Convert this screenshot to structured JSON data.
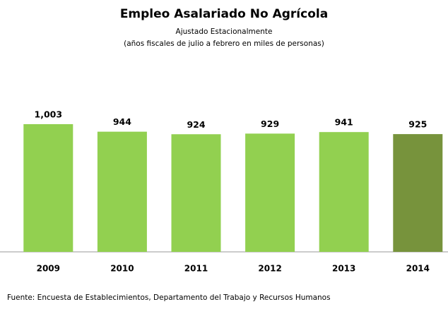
{
  "chart_data": {
    "type": "bar",
    "title": "Empleo Asalariado No Agrícola",
    "subtitle": [
      "Ajustado Estacionalmente",
      "(años fiscales de julio a febrero en miles de personas)"
    ],
    "categories": [
      "2009",
      "2010",
      "2011",
      "2012",
      "2013",
      "2014"
    ],
    "values": [
      1003,
      944,
      924,
      929,
      941,
      925
    ],
    "value_labels": [
      "1,003",
      "944",
      "924",
      "929",
      "941",
      "925"
    ],
    "colors": [
      "#92d050",
      "#92d050",
      "#92d050",
      "#92d050",
      "#92d050",
      "#77933c"
    ],
    "ylim": [
      0,
      1100
    ],
    "source": "Fuente: Encuesta de Establecimientos, Departamento del Trabajo y Recursos Humanos"
  }
}
